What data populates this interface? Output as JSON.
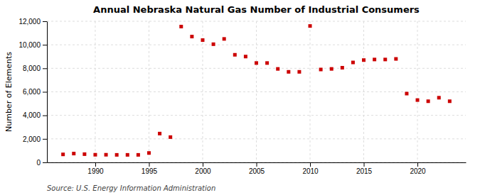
{
  "chart_data": {
    "type": "scatter",
    "title": "Annual Nebraska Natural Gas Number of Industrial Consumers",
    "ylabel": "Number of Elements",
    "source": "Source: U.S. Energy Information Administration",
    "color": "#cc0000",
    "marker": "square",
    "grid": true,
    "x": [
      1987,
      1988,
      1989,
      1990,
      1991,
      1992,
      1993,
      1994,
      1995,
      1996,
      1997,
      1998,
      1999,
      2000,
      2001,
      2002,
      2003,
      2004,
      2005,
      2006,
      2007,
      2008,
      2009,
      2010,
      2011,
      2012,
      2013,
      2014,
      2015,
      2016,
      2017,
      2018,
      2019,
      2020,
      2021,
      2022,
      2023
    ],
    "values": [
      680,
      750,
      700,
      650,
      650,
      640,
      640,
      640,
      800,
      2450,
      2150,
      11550,
      10700,
      10400,
      10050,
      10500,
      9150,
      9000,
      8450,
      8450,
      7950,
      7700,
      7700,
      11600,
      7900,
      7950,
      8050,
      8500,
      8700,
      8750,
      8750,
      8800,
      5850,
      5300,
      5200,
      5500,
      5200
    ],
    "xlim": [
      1985.5,
      2024.5
    ],
    "xticks": [
      1990,
      1995,
      2000,
      2005,
      2010,
      2015,
      2020
    ],
    "ylim": [
      0,
      12000
    ],
    "yticks": [
      0,
      {
        "value": 2000,
        "label": "2,000"
      },
      {
        "value": 4000,
        "label": "4,000"
      },
      {
        "value": 6000,
        "label": "6,000"
      },
      {
        "value": 8000,
        "label": "8,000"
      },
      {
        "value": 10000,
        "label": "10,000"
      },
      {
        "value": 12000,
        "label": "12,000"
      }
    ]
  }
}
